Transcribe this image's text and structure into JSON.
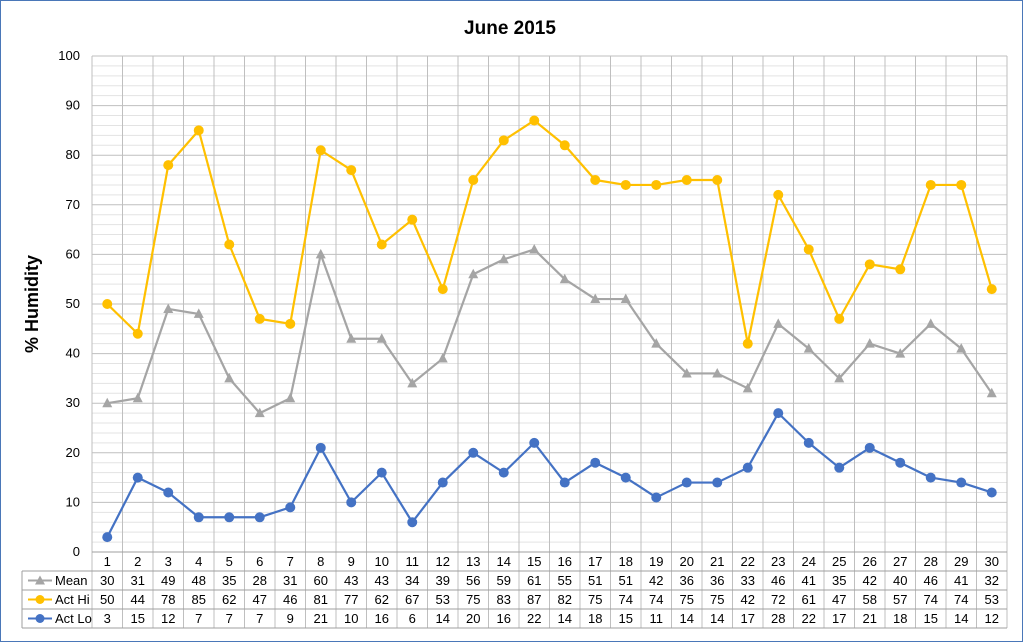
{
  "chart_data": {
    "type": "line",
    "title": "June 2015",
    "ylabel": "% Humidity",
    "xlabel": "",
    "ylim": [
      0,
      100
    ],
    "yticks": [
      0,
      10,
      20,
      30,
      40,
      50,
      60,
      70,
      80,
      90,
      100
    ],
    "grid": true,
    "legend_placement": "data-table",
    "categories": [
      "1",
      "2",
      "3",
      "4",
      "5",
      "6",
      "7",
      "8",
      "9",
      "10",
      "11",
      "12",
      "13",
      "14",
      "15",
      "16",
      "17",
      "18",
      "19",
      "20",
      "21",
      "22",
      "23",
      "24",
      "25",
      "26",
      "27",
      "28",
      "29",
      "30"
    ],
    "series": [
      {
        "name": "Mean",
        "color": "#a5a5a5",
        "marker": "triangle",
        "values": [
          30,
          31,
          49,
          48,
          35,
          28,
          31,
          60,
          43,
          43,
          34,
          39,
          56,
          59,
          61,
          55,
          51,
          51,
          42,
          36,
          36,
          33,
          46,
          41,
          35,
          42,
          40,
          46,
          41,
          32
        ]
      },
      {
        "name": "Act Hi",
        "color": "#ffc000",
        "marker": "circle",
        "values": [
          50,
          44,
          78,
          85,
          62,
          47,
          46,
          81,
          77,
          62,
          67,
          53,
          75,
          83,
          87,
          82,
          75,
          74,
          74,
          75,
          75,
          42,
          72,
          61,
          47,
          58,
          57,
          74,
          74,
          53
        ]
      },
      {
        "name": "Act Lo",
        "color": "#4472c4",
        "marker": "circle",
        "values": [
          3,
          15,
          12,
          7,
          7,
          7,
          9,
          21,
          10,
          16,
          6,
          14,
          20,
          16,
          22,
          14,
          18,
          15,
          11,
          14,
          14,
          17,
          28,
          22,
          17,
          21,
          18,
          15,
          14,
          12
        ]
      }
    ]
  }
}
